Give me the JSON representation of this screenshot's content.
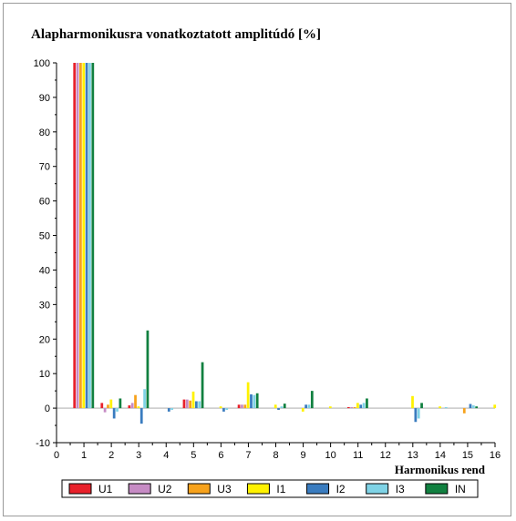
{
  "chart_data": {
    "type": "bar",
    "title": "Alapharmonikusra vonatkoztatott amplitúdó [%]",
    "xlabel": "Harmonikus rend",
    "ylabel": "",
    "ylim": [
      -10,
      100
    ],
    "yticks": [
      -10,
      0,
      10,
      20,
      30,
      40,
      50,
      60,
      70,
      80,
      90,
      100
    ],
    "xlim": [
      0,
      16
    ],
    "xticks": [
      0,
      1,
      2,
      3,
      4,
      5,
      6,
      7,
      8,
      9,
      10,
      11,
      12,
      13,
      14,
      15,
      16
    ],
    "grid": false,
    "legend_position": "bottom",
    "categories": [
      1,
      2,
      3,
      4,
      5,
      6,
      7,
      8,
      9,
      10,
      11,
      12,
      13,
      14,
      15,
      16
    ],
    "series": [
      {
        "name": "U1",
        "color": "#e8202a",
        "values": [
          100,
          1.5,
          0.8,
          0,
          2.5,
          0,
          1,
          0,
          0,
          0,
          0.3,
          0,
          0,
          0,
          0,
          0
        ]
      },
      {
        "name": "U2",
        "color": "#c68bc4",
        "values": [
          100,
          -1.2,
          1.5,
          0,
          2.5,
          0,
          1,
          0,
          0,
          0,
          0.3,
          0,
          0,
          0,
          0,
          0
        ]
      },
      {
        "name": "U3",
        "color": "#f7a21b",
        "values": [
          100,
          1.0,
          3.8,
          0,
          2.2,
          0,
          1,
          0,
          0,
          0,
          0.3,
          0,
          0,
          0,
          -1.5,
          0
        ]
      },
      {
        "name": "I1",
        "color": "#fff200",
        "values": [
          100,
          2.5,
          0.5,
          0,
          4.8,
          0.5,
          7.5,
          1.0,
          -1.0,
          0.5,
          1.5,
          0,
          3.5,
          0.5,
          0,
          1.0
        ]
      },
      {
        "name": "I2",
        "color": "#3a7cbf",
        "values": [
          100,
          -3.0,
          -4.5,
          -1.0,
          2.0,
          -1.0,
          4.0,
          -0.5,
          1.0,
          0,
          1.0,
          0,
          -4.0,
          0,
          1.2,
          0
        ]
      },
      {
        "name": "I3",
        "color": "#7fd3e6",
        "values": [
          100,
          -1.0,
          5.5,
          -0.5,
          2.0,
          -0.5,
          3.8,
          0.5,
          1.0,
          0,
          1.5,
          0,
          -3.0,
          0.3,
          0.8,
          0
        ]
      },
      {
        "name": "IN",
        "color": "#118040",
        "values": [
          100,
          2.8,
          22.5,
          0,
          13.3,
          0,
          4.3,
          1.3,
          5.0,
          0,
          2.8,
          0,
          1.5,
          0,
          0.5,
          0
        ]
      }
    ]
  }
}
